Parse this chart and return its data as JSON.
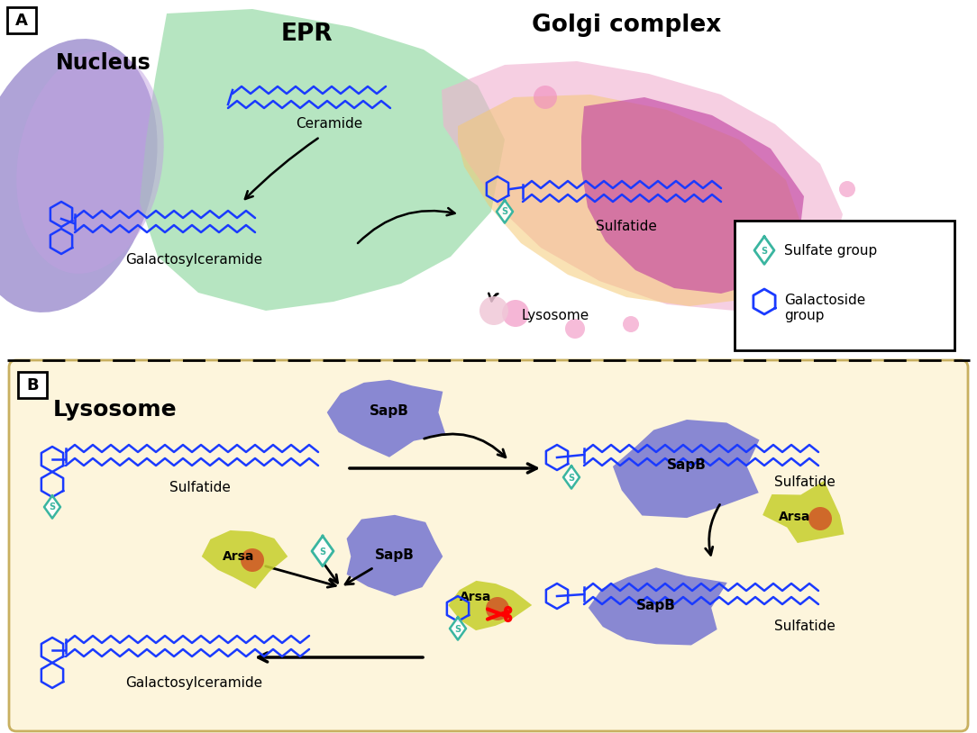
{
  "fig_width": 10.84,
  "fig_height": 8.14,
  "background_color": "#ffffff",
  "labels": {
    "nucleus": "Nucleus",
    "epr": "EPR",
    "golgi": "Golgi complex",
    "ceramide": "Ceramide",
    "galactosylceramide": "Galactosylceramide",
    "sulfatide": "Sulfatide",
    "lysosome_label": "Lysosome",
    "lysosome_section": "Lysosome",
    "sapb": "SapB",
    "arsa": "Arsa",
    "sulfate_group": "Sulfate group",
    "galactoside_group": "Galactoside\ngroup",
    "panel_a": "A",
    "panel_b": "B"
  },
  "colors": {
    "blue_molecule": "#1a3aff",
    "teal_diamond": "#3ab5a0",
    "black_text": "#000000",
    "nucleus_purple": "#b090d0",
    "epr_green": "#90d8a0",
    "golgi_pink": "#f0b0d0",
    "golgi_yellow": "#f8d060",
    "golgi_magenta": "#c040a0",
    "lysosome_bg": "#fdf5dc",
    "sapb_blue": "#7070d0",
    "arsa_yellow": "#c8d030",
    "arsa_red": "#d04020",
    "panel_border": "#000000"
  }
}
